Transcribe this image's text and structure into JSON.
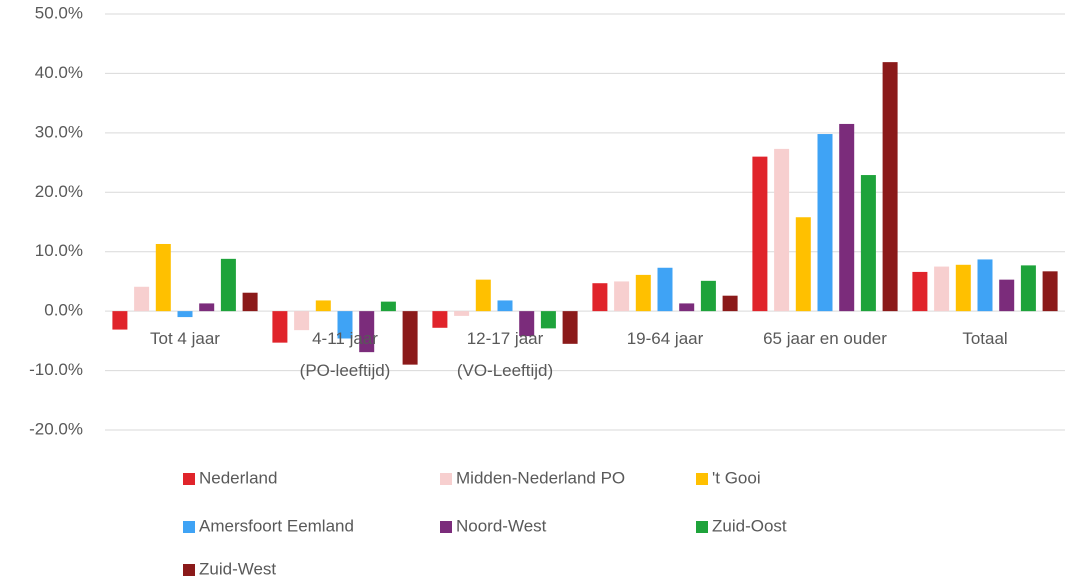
{
  "chart_data": {
    "type": "bar",
    "categories": [
      "Tot 4 jaar",
      "4-11 jaar\n(PO-leeftijd)",
      "12-17 jaar\n(VO-Leeftijd)",
      "19-64 jaar",
      "65 jaar en ouder",
      "Totaal"
    ],
    "series": [
      {
        "name": "Nederland",
        "color": "#e0242b",
        "values": [
          -3.1,
          -5.3,
          -2.8,
          4.7,
          26.0,
          6.6
        ]
      },
      {
        "name": "Midden-Nederland PO",
        "color": "#f7cfcf",
        "values": [
          4.1,
          -3.2,
          -0.8,
          5.0,
          27.3,
          7.5
        ]
      },
      {
        "name": "'t Gooi",
        "color": "#ffc000",
        "values": [
          11.3,
          1.8,
          5.3,
          6.1,
          15.8,
          7.8
        ]
      },
      {
        "name": "Amersfoort Eemland",
        "color": "#3fa3f5",
        "values": [
          -1.0,
          -4.6,
          1.8,
          7.3,
          29.8,
          8.7
        ]
      },
      {
        "name": "Noord-West",
        "color": "#7b2c7b",
        "values": [
          1.3,
          -6.9,
          -4.2,
          1.3,
          31.5,
          5.3
        ]
      },
      {
        "name": "Zuid-Oost",
        "color": "#1ea33b",
        "values": [
          8.8,
          1.6,
          -2.9,
          5.1,
          22.9,
          7.7
        ]
      },
      {
        "name": "Zuid-West",
        "color": "#8b1a1a",
        "values": [
          3.1,
          -9.0,
          -5.5,
          2.6,
          41.9,
          6.7
        ]
      }
    ],
    "ylim": [
      -20,
      50
    ],
    "yticks": [
      {
        "value": -20,
        "label": "-20.0%"
      },
      {
        "value": -10,
        "label": "-10.0%"
      },
      {
        "value": 0,
        "label": "0.0%"
      },
      {
        "value": 10,
        "label": "10.0%"
      },
      {
        "value": 20,
        "label": "20.0%"
      },
      {
        "value": 30,
        "label": "30.0%"
      },
      {
        "value": 40,
        "label": "40.0%"
      },
      {
        "value": 50,
        "label": "50.0%"
      }
    ],
    "grid": true
  }
}
